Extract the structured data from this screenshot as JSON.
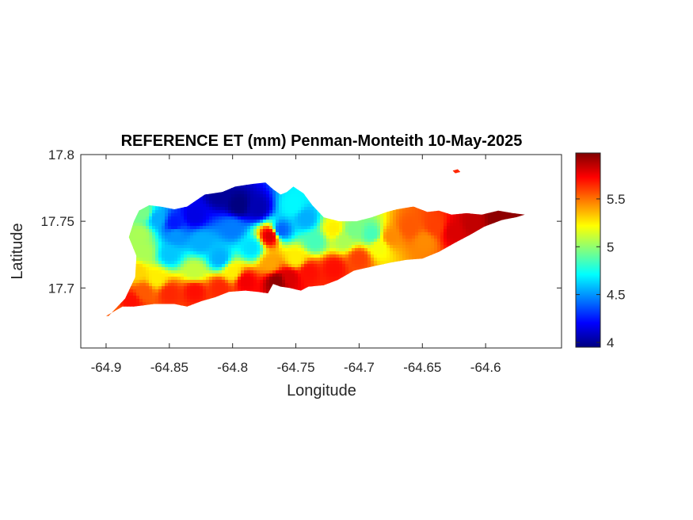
{
  "chart_data": {
    "type": "heatmap",
    "title": "REFERENCE ET (mm) Penman-Monteith 10-May-2025",
    "xlabel": "Longitude",
    "ylabel": "Latitude",
    "xlim": [
      -64.92,
      -64.54
    ],
    "ylim": [
      17.655,
      17.8
    ],
    "xticks": [
      -64.9,
      -64.85,
      -64.8,
      -64.75,
      -64.7,
      -64.65,
      -64.6
    ],
    "xtick_labels": [
      "-64.9",
      "-64.85",
      "-64.8",
      "-64.75",
      "-64.7",
      "-64.65",
      "-64.6"
    ],
    "yticks": [
      17.7,
      17.75,
      17.8
    ],
    "ytick_labels": [
      "17.7",
      "17.75",
      "17.8"
    ],
    "colorbar": {
      "colormap": "jet",
      "clim": [
        3.95,
        5.98
      ],
      "ticks": [
        4,
        4.5,
        5,
        5.5
      ],
      "tick_labels": [
        "4",
        "4.5",
        "5",
        "5.5"
      ]
    },
    "grid": false,
    "island_outline": [
      [
        -64.898,
        17.679
      ],
      [
        -64.885,
        17.692
      ],
      [
        -64.877,
        17.708
      ],
      [
        -64.876,
        17.724
      ],
      [
        -64.882,
        17.738
      ],
      [
        -64.878,
        17.75
      ],
      [
        -64.874,
        17.758
      ],
      [
        -64.866,
        17.762
      ],
      [
        -64.857,
        17.761
      ],
      [
        -64.846,
        17.759
      ],
      [
        -64.836,
        17.761
      ],
      [
        -64.822,
        17.77
      ],
      [
        -64.808,
        17.772
      ],
      [
        -64.798,
        17.776
      ],
      [
        -64.784,
        17.778
      ],
      [
        -64.774,
        17.779
      ],
      [
        -64.768,
        17.774
      ],
      [
        -64.762,
        17.77
      ],
      [
        -64.757,
        17.772
      ],
      [
        -64.752,
        17.776
      ],
      [
        -64.744,
        17.771
      ],
      [
        -64.737,
        17.762
      ],
      [
        -64.728,
        17.753
      ],
      [
        -64.716,
        17.75
      ],
      [
        -64.702,
        17.75
      ],
      [
        -64.69,
        17.753
      ],
      [
        -64.678,
        17.757
      ],
      [
        -64.67,
        17.759
      ],
      [
        -64.657,
        17.761
      ],
      [
        -64.646,
        17.757
      ],
      [
        -64.637,
        17.758
      ],
      [
        -64.627,
        17.755
      ],
      [
        -64.615,
        17.756
      ],
      [
        -64.603,
        17.755
      ],
      [
        -64.59,
        17.758
      ],
      [
        -64.578,
        17.756
      ],
      [
        -64.569,
        17.755
      ],
      [
        -64.576,
        17.753
      ],
      [
        -64.587,
        17.751
      ],
      [
        -64.601,
        17.746
      ],
      [
        -64.612,
        17.74
      ],
      [
        -64.624,
        17.734
      ],
      [
        -64.637,
        17.727
      ],
      [
        -64.65,
        17.722
      ],
      [
        -64.663,
        17.721
      ],
      [
        -64.675,
        17.719
      ],
      [
        -64.69,
        17.716
      ],
      [
        -64.704,
        17.713
      ],
      [
        -64.717,
        17.706
      ],
      [
        -64.728,
        17.702
      ],
      [
        -64.74,
        17.701
      ],
      [
        -64.746,
        17.698
      ],
      [
        -64.755,
        17.7
      ],
      [
        -64.762,
        17.701
      ],
      [
        -64.768,
        17.703
      ],
      [
        -64.772,
        17.696
      ],
      [
        -64.78,
        17.697
      ],
      [
        -64.79,
        17.698
      ],
      [
        -64.803,
        17.697
      ],
      [
        -64.814,
        17.693
      ],
      [
        -64.825,
        17.69
      ],
      [
        -64.836,
        17.686
      ],
      [
        -64.846,
        17.688
      ],
      [
        -64.862,
        17.688
      ],
      [
        -64.878,
        17.686
      ],
      [
        -64.887,
        17.686
      ],
      [
        -64.9,
        17.679
      ]
    ],
    "islet_outline": [
      [
        -64.626,
        17.788
      ],
      [
        -64.622,
        17.789
      ],
      [
        -64.62,
        17.787
      ],
      [
        -64.624,
        17.786
      ]
    ],
    "et_anchor_points": [
      [
        -64.81,
        17.77,
        4.0
      ],
      [
        -64.795,
        17.762,
        3.95
      ],
      [
        -64.78,
        17.76,
        4.05
      ],
      [
        -64.83,
        17.754,
        4.15
      ],
      [
        -64.846,
        17.748,
        4.25
      ],
      [
        -64.86,
        17.752,
        4.55
      ],
      [
        -64.87,
        17.756,
        4.95
      ],
      [
        -64.873,
        17.74,
        5.05
      ],
      [
        -64.85,
        17.725,
        4.6
      ],
      [
        -64.81,
        17.722,
        4.55
      ],
      [
        -64.785,
        17.73,
        4.65
      ],
      [
        -64.762,
        17.743,
        4.4
      ],
      [
        -64.752,
        17.762,
        4.7
      ],
      [
        -64.742,
        17.752,
        4.55
      ],
      [
        -64.735,
        17.735,
        4.85
      ],
      [
        -64.72,
        17.744,
        5.25
      ],
      [
        -64.712,
        17.736,
        5.05
      ],
      [
        -64.705,
        17.743,
        4.95
      ],
      [
        -64.69,
        17.74,
        4.85
      ],
      [
        -64.684,
        17.731,
        5.2
      ],
      [
        -64.675,
        17.738,
        5.45
      ],
      [
        -64.66,
        17.745,
        5.55
      ],
      [
        -64.648,
        17.735,
        5.45
      ],
      [
        -64.64,
        17.746,
        5.6
      ],
      [
        -64.625,
        17.742,
        5.8
      ],
      [
        -64.61,
        17.748,
        5.85
      ],
      [
        -64.59,
        17.752,
        5.95
      ],
      [
        -64.575,
        17.754,
        5.95
      ],
      [
        -64.7,
        17.722,
        5.6
      ],
      [
        -64.72,
        17.715,
        5.7
      ],
      [
        -64.74,
        17.712,
        5.7
      ],
      [
        -64.755,
        17.708,
        5.8
      ],
      [
        -64.765,
        17.705,
        5.95
      ],
      [
        -64.77,
        17.739,
        5.8
      ],
      [
        -64.79,
        17.705,
        5.75
      ],
      [
        -64.81,
        17.7,
        5.65
      ],
      [
        -64.83,
        17.698,
        5.7
      ],
      [
        -64.85,
        17.696,
        5.65
      ],
      [
        -64.87,
        17.697,
        5.55
      ],
      [
        -64.88,
        17.69,
        5.7
      ],
      [
        -64.895,
        17.681,
        5.55
      ],
      [
        -64.876,
        17.712,
        5.3
      ],
      [
        -64.86,
        17.707,
        5.25
      ],
      [
        -64.83,
        17.712,
        5.1
      ],
      [
        -64.8,
        17.712,
        5.25
      ],
      [
        -64.77,
        17.718,
        5.4
      ],
      [
        -64.75,
        17.722,
        5.25
      ],
      [
        -64.825,
        17.735,
        4.55
      ],
      [
        -64.845,
        17.74,
        4.5
      ],
      [
        -64.8,
        17.745,
        4.45
      ],
      [
        -64.87,
        17.727,
        5.05
      ],
      [
        -64.622,
        17.788,
        5.65
      ]
    ]
  }
}
